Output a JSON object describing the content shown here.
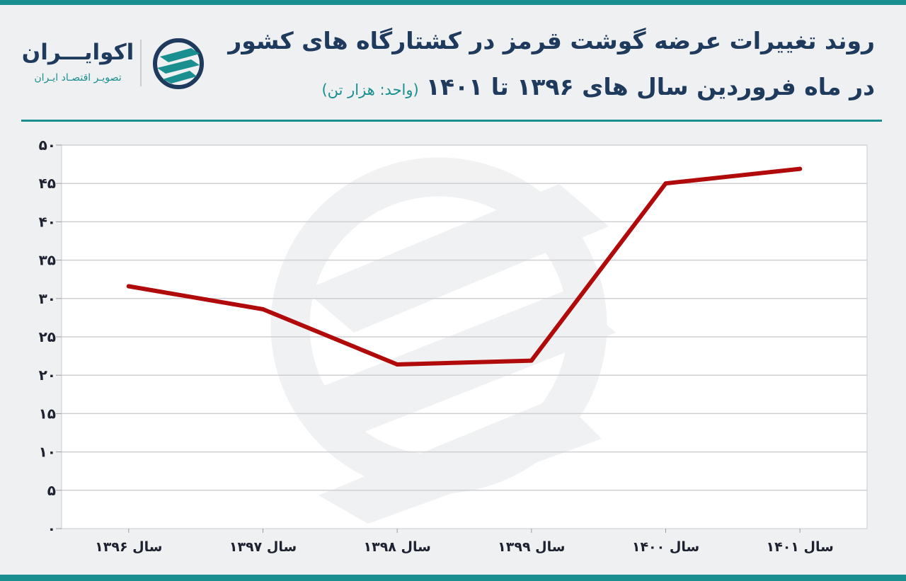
{
  "header": {
    "title_line1": "روند تغییرات عرضه گوشت قرمز در کشتارگاه های کشور",
    "title_line2": "در ماه فروردین سال های ۱۳۹۶ تا ۱۴۰۱",
    "unit_note": "(واحد: هزار تن)"
  },
  "logo": {
    "name": "اکوایـــران",
    "tagline": "تصویـر اقتصـاد ایـران",
    "icon": "ecoiran-logo-icon"
  },
  "colors": {
    "accent": "#1a8f8f",
    "title": "#1e3a5c",
    "line": "#b00a0a",
    "background": "#eff0f2",
    "plot_background": "#ffffff",
    "grid": "#cfcfd4"
  },
  "chart_data": {
    "type": "line",
    "categories": [
      "سال ۱۳۹۶",
      "سال ۱۳۹۷",
      "سال ۱۳۹۸",
      "سال ۱۳۹۹",
      "سال ۱۴۰۰",
      "سال ۱۴۰۱"
    ],
    "series": [
      {
        "values": [
          31.6,
          28.6,
          21.4,
          21.9,
          45.0,
          46.9
        ]
      }
    ],
    "ylim": [
      0,
      50
    ],
    "yticks": [
      0,
      5,
      10,
      15,
      20,
      25,
      30,
      35,
      40,
      45,
      50
    ],
    "ytick_labels": [
      "۰",
      "۵",
      "۱۰",
      "۱۵",
      "۲۰",
      "۲۵",
      "۳۰",
      "۳۵",
      "۴۰",
      "۴۵",
      "۵۰"
    ],
    "title": "روند تغییرات عرضه گوشت قرمز در کشتارگاه های کشور در ماه فروردین سال های ۱۳۹۶ تا ۱۴۰۱",
    "xlabel": "",
    "ylabel": "",
    "grid": true,
    "legend": "none"
  }
}
